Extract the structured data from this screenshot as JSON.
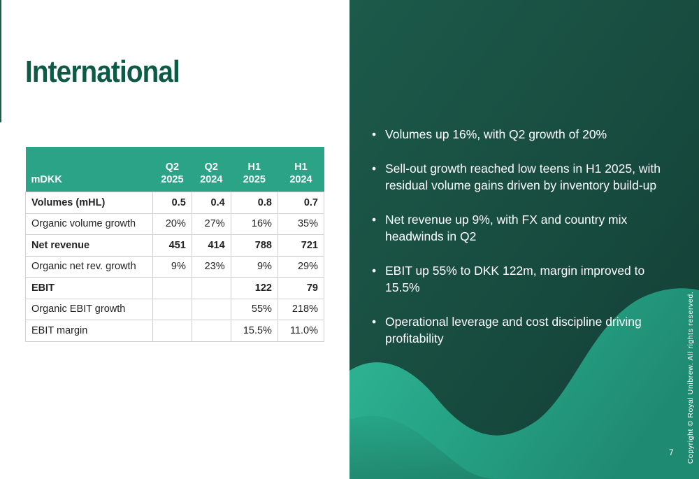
{
  "title": "International",
  "table": {
    "header": {
      "label": "mDKK",
      "cols": [
        {
          "line1": "Q2",
          "line2": "2025"
        },
        {
          "line1": "Q2",
          "line2": "2024"
        },
        {
          "line1": "H1",
          "line2": "2025"
        },
        {
          "line1": "H1",
          "line2": "2024"
        }
      ]
    },
    "rows": [
      {
        "label": "Volumes (mHL)",
        "bold": true,
        "values": [
          "0.5",
          "0.4",
          "0.8",
          "0.7"
        ]
      },
      {
        "label": "Organic volume growth",
        "bold": false,
        "values": [
          "20%",
          "27%",
          "16%",
          "35%"
        ]
      },
      {
        "label": "Net revenue",
        "bold": true,
        "values": [
          "451",
          "414",
          "788",
          "721"
        ]
      },
      {
        "label": "Organic net rev. growth",
        "bold": false,
        "values": [
          "9%",
          "23%",
          "9%",
          "29%"
        ]
      },
      {
        "label": "EBIT",
        "bold": true,
        "values": [
          "",
          "",
          "122",
          "79"
        ]
      },
      {
        "label": "Organic EBIT growth",
        "bold": false,
        "values": [
          "",
          "",
          "55%",
          "218%"
        ]
      },
      {
        "label": "EBIT margin",
        "bold": false,
        "values": [
          "",
          "",
          "15.5%",
          "11.0%"
        ]
      }
    ]
  },
  "bullets": [
    "Volumes up 16%, with Q2 growth of 20%",
    "Sell-out growth reached low teens in H1 2025, with residual volume gains driven by inventory build-up",
    "Net revenue up 9%, with FX and country mix headwinds in Q2",
    "EBIT up 55% to DKK 122m, margin improved to 15.5%",
    "Operational leverage and cost discipline driving profitability"
  ],
  "bullet_symbol": "•",
  "copyright": "Copyright © Royal Unibrew. All rights reserved.",
  "page_number": "7",
  "colors": {
    "title": "#0e5a45",
    "table_header": "#2aa386",
    "panel_dark": "#17463c",
    "panel_wave": "#2bb08f"
  }
}
